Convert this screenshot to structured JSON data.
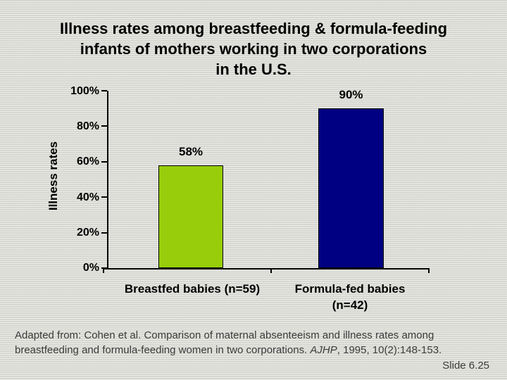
{
  "slide": {
    "title_lines": [
      "Illness rates among breastfeeding & formula-feeding",
      "infants of mothers working in two corporations",
      "in the U.S."
    ],
    "slide_number": "Slide 6.25"
  },
  "chart_data": {
    "type": "bar",
    "title": "",
    "xlabel": "",
    "ylabel": "Illness rates",
    "categories": [
      "Breastfed babies (n=59)",
      "Formula-fed babies (n=42)"
    ],
    "categories_display": [
      "Breastfed babies (n=59)",
      "Formula-fed babies\n(n=42)"
    ],
    "values": [
      58,
      90
    ],
    "value_labels": [
      "58%",
      "90%"
    ],
    "bar_colors": [
      "#97cd0a",
      "#000082"
    ],
    "ylim": [
      0,
      100
    ],
    "ytick_labels": [
      "100%",
      "80%",
      "60%",
      "40%",
      "20%",
      "0%"
    ],
    "grid": false,
    "legend": "none"
  },
  "footer": {
    "part1": "Adapted from: Cohen et al. Comparison of maternal absenteeism and illness rates among breastfeeding and formula-feeding women in two corporations. ",
    "journal": "AJHP",
    "part2": ", 1995, 10(2):148-153."
  }
}
